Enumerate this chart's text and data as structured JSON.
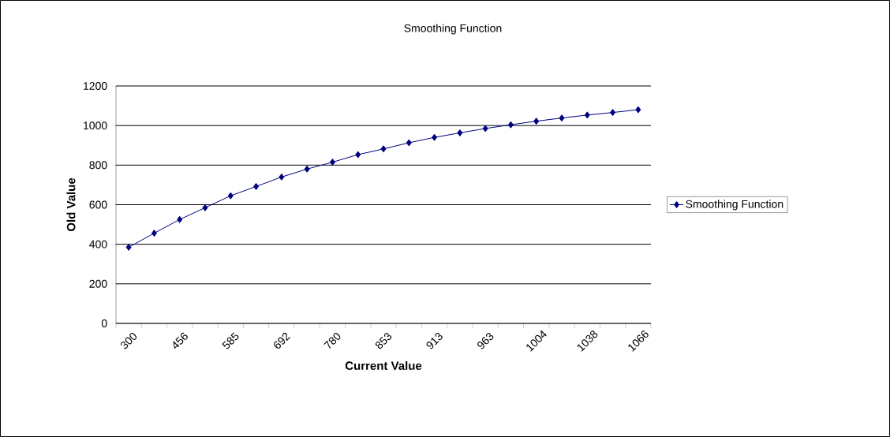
{
  "chart_data": {
    "type": "line",
    "title": "Smoothing Function",
    "xlabel": "Current Value",
    "ylabel": "Old Value",
    "categories": [
      "300",
      null,
      "456",
      null,
      "585",
      null,
      "692",
      null,
      "780",
      null,
      "853",
      null,
      "913",
      null,
      "963",
      null,
      "1004",
      null,
      "1038",
      null,
      "1066"
    ],
    "series": [
      {
        "name": "Smoothing Function",
        "color": "#000080",
        "values": [
          385,
          456,
          525,
          585,
          645,
          692,
          740,
          780,
          815,
          853,
          882,
          913,
          940,
          963,
          985,
          1004,
          1022,
          1038,
          1053,
          1066,
          1080
        ]
      }
    ],
    "ylim": [
      0,
      1200
    ],
    "yticks": [
      0,
      200,
      400,
      600,
      800,
      1000,
      1200
    ],
    "grid": "y",
    "legend": "right",
    "marker": "diamond",
    "line_style": "solid"
  }
}
